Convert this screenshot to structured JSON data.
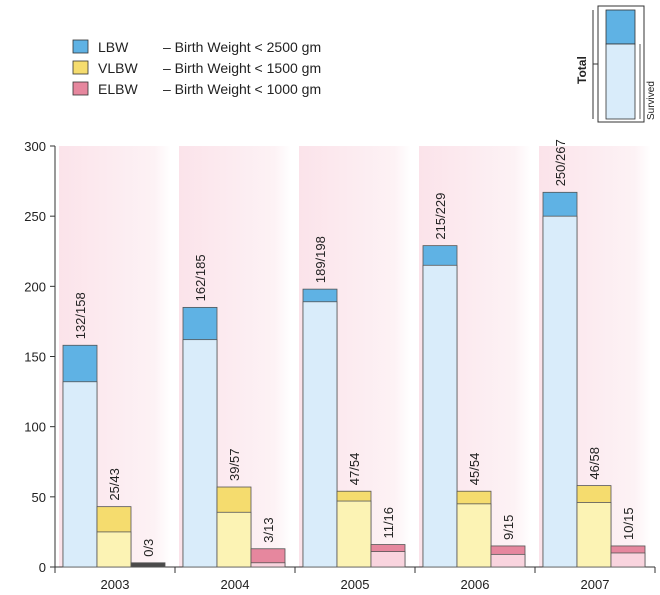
{
  "chart_data": {
    "type": "bar",
    "categories": [
      "2003",
      "2004",
      "2005",
      "2006",
      "2007"
    ],
    "ylim": [
      0,
      300
    ],
    "yticks": [
      0,
      50,
      100,
      150,
      200,
      250,
      300
    ],
    "grid": false,
    "legend_position": "top-left",
    "series": [
      {
        "name": "LBW",
        "description": "– Birth Weight < 2500 gm",
        "total": [
          158,
          185,
          198,
          229,
          267
        ],
        "survived": [
          132,
          162,
          189,
          215,
          250
        ],
        "labels": [
          "132/158",
          "162/185",
          "189/198",
          "215/229",
          "250/267"
        ]
      },
      {
        "name": "VLBW",
        "description": "– Birth Weight < 1500 gm",
        "total": [
          43,
          57,
          54,
          54,
          58
        ],
        "survived": [
          25,
          39,
          47,
          45,
          46
        ],
        "labels": [
          "25/43",
          "39/57",
          "47/54",
          "45/54",
          "46/58"
        ]
      },
      {
        "name": "ELBW",
        "description": "– Birth Weight < 1000 gm",
        "total": [
          3,
          13,
          16,
          15,
          15
        ],
        "survived": [
          0,
          3,
          11,
          9,
          10
        ],
        "labels": [
          "0/3",
          "3/13",
          "11/16",
          "9/15",
          "10/15"
        ]
      }
    ],
    "key": {
      "total_label": "Total",
      "survived_label": "Survived"
    }
  },
  "colors": {
    "band": "#fbe3ea",
    "series_total": [
      "#5fb2e4",
      "#f5dc6e",
      "#e6879e"
    ],
    "series_survived": [
      "#d9ecfa",
      "#fcf3b4",
      "#f9d4de"
    ],
    "zero_bar": "#4a4a4a",
    "axis": "#333333",
    "text": "#222222"
  }
}
